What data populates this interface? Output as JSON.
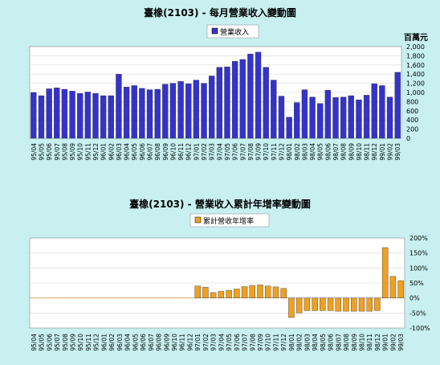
{
  "chart_data": [
    {
      "type": "bar",
      "title": "臺橡(2103) - 每月營業收入變動圖",
      "legend": "營業收入",
      "unit": "百萬元",
      "ylim": [
        0,
        2000
      ],
      "yticks": [
        "2,000",
        "1,800",
        "1,600",
        "1,400",
        "1,200",
        "1,000",
        "800",
        "600",
        "400",
        "200",
        "0"
      ],
      "bar_color": "#3333cc",
      "categories": [
        "95/04",
        "95/05",
        "95/06",
        "95/07",
        "95/08",
        "95/09",
        "95/10",
        "95/11",
        "95/12",
        "96/01",
        "96/02",
        "96/03",
        "96/04",
        "96/05",
        "96/06",
        "96/07",
        "96/08",
        "96/09",
        "96/10",
        "96/11",
        "96/12",
        "97/01",
        "97/02",
        "97/03",
        "97/04",
        "97/05",
        "97/06",
        "97/07",
        "97/08",
        "97/09",
        "97/10",
        "97/11",
        "97/12",
        "98/01",
        "98/02",
        "98/03",
        "98/04",
        "98/05",
        "98/06",
        "98/07",
        "98/08",
        "98/09",
        "98/10",
        "98/11",
        "98/12",
        "99/01",
        "99/02",
        "99/03"
      ],
      "values": [
        1000,
        930,
        1080,
        1100,
        1070,
        1030,
        980,
        1010,
        980,
        930,
        930,
        1400,
        1120,
        1150,
        1090,
        1060,
        1070,
        1180,
        1200,
        1240,
        1190,
        1270,
        1200,
        1360,
        1550,
        1560,
        1680,
        1720,
        1840,
        1880,
        1550,
        1270,
        920,
        460,
        780,
        1060,
        900,
        760,
        1050,
        890,
        900,
        930,
        840,
        940,
        1190,
        1150,
        900,
        1440
      ]
    },
    {
      "type": "bar",
      "title": "臺橡(2103) -  營業收入累計年增率變動圖",
      "legend": "累計營收年增率",
      "ylim": [
        -100,
        200
      ],
      "yticks": [
        "200%",
        "150%",
        "100%",
        "50%",
        "0%",
        "-50%",
        "-100%"
      ],
      "bar_color": "#f0a020",
      "categories": [
        "95/04",
        "95/05",
        "95/06",
        "95/07",
        "95/08",
        "95/09",
        "95/10",
        "95/11",
        "95/12",
        "96/01",
        "96/02",
        "96/03",
        "96/04",
        "96/05",
        "96/06",
        "96/07",
        "96/08",
        "96/09",
        "96/10",
        "96/11",
        "96/12",
        "97/01",
        "97/02",
        "97/03",
        "97/04",
        "97/05",
        "97/06",
        "97/07",
        "97/08",
        "97/09",
        "97/10",
        "97/11",
        "97/12",
        "98/01",
        "98/02",
        "98/03",
        "98/04",
        "98/05",
        "98/06",
        "98/07",
        "98/08",
        "98/09",
        "98/10",
        "98/11",
        "98/12",
        "99/01",
        "99/02",
        "99/03"
      ],
      "values": [
        0,
        0,
        0,
        0,
        0,
        0,
        0,
        0,
        0,
        0,
        0,
        0,
        0,
        0,
        0,
        0,
        0,
        0,
        0,
        0,
        0,
        40,
        36,
        18,
        22,
        25,
        30,
        38,
        42,
        44,
        40,
        37,
        32,
        -65,
        -50,
        -42,
        -42,
        -42,
        -42,
        -44,
        -44,
        -44,
        -44,
        -44,
        -42,
        168,
        72,
        58
      ]
    }
  ]
}
